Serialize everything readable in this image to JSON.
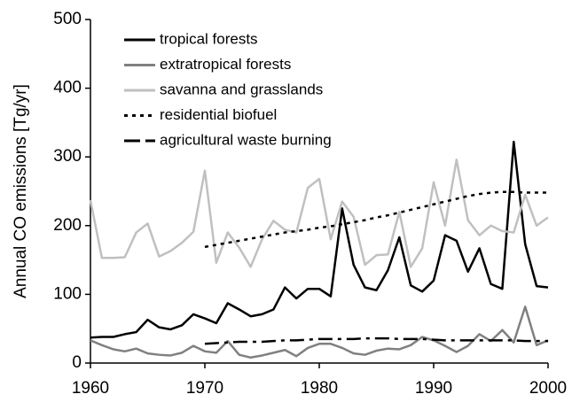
{
  "chart_data": {
    "type": "line",
    "ylabel": "Annual CO emissions [Tg/yr]",
    "x": [
      1960,
      1961,
      1962,
      1963,
      1964,
      1965,
      1966,
      1967,
      1968,
      1969,
      1970,
      1971,
      1972,
      1973,
      1974,
      1975,
      1976,
      1977,
      1978,
      1979,
      1980,
      1981,
      1982,
      1983,
      1984,
      1985,
      1986,
      1987,
      1988,
      1989,
      1990,
      1991,
      1992,
      1993,
      1994,
      1995,
      1996,
      1997,
      1998,
      1999,
      2000
    ],
    "series": [
      {
        "name": "tropical forests",
        "color": "#000000",
        "dash": "solid",
        "values": [
          37,
          38,
          38,
          42,
          45,
          63,
          52,
          49,
          55,
          71,
          65,
          58,
          87,
          78,
          68,
          71,
          78,
          110,
          94,
          108,
          108,
          97,
          225,
          143,
          110,
          106,
          135,
          183,
          113,
          104,
          120,
          186,
          178,
          133,
          167,
          115,
          108,
          322,
          173,
          112,
          110
        ]
      },
      {
        "name": "extratropical forests",
        "color": "#808080",
        "dash": "solid",
        "values": [
          33,
          26,
          20,
          17,
          21,
          14,
          12,
          11,
          15,
          25,
          17,
          15,
          32,
          12,
          8,
          11,
          15,
          19,
          10,
          22,
          28,
          28,
          22,
          14,
          12,
          18,
          21,
          20,
          26,
          38,
          33,
          25,
          16,
          25,
          42,
          32,
          48,
          30,
          82,
          26,
          33
        ]
      },
      {
        "name": "savanna and grasslands",
        "color": "#c0c0c0",
        "dash": "solid",
        "values": [
          237,
          153,
          153,
          154,
          190,
          203,
          155,
          163,
          175,
          191,
          280,
          146,
          190,
          168,
          140,
          180,
          207,
          194,
          190,
          255,
          268,
          180,
          235,
          213,
          143,
          157,
          158,
          220,
          140,
          167,
          263,
          200,
          296,
          208,
          186,
          200,
          192,
          190,
          245,
          200,
          212
        ]
      },
      {
        "name": "residential biofuel",
        "color": "#000000",
        "dash": "dotted",
        "values": [
          null,
          null,
          null,
          null,
          null,
          null,
          null,
          null,
          null,
          null,
          169,
          172,
          175,
          178,
          181,
          184,
          187,
          190,
          192,
          194,
          197,
          199,
          202,
          205,
          208,
          212,
          215,
          219,
          223,
          227,
          231,
          235,
          239,
          243,
          246,
          248,
          249,
          249,
          248,
          248,
          248
        ]
      },
      {
        "name": "agricultural waste burning",
        "color": "#000000",
        "dash": "dashed",
        "values": [
          null,
          null,
          null,
          null,
          null,
          null,
          null,
          null,
          null,
          null,
          28,
          29,
          30,
          31,
          31,
          31,
          32,
          33,
          33,
          34,
          35,
          35,
          35,
          35,
          36,
          36,
          36,
          35,
          35,
          35,
          34,
          33,
          33,
          33,
          33,
          33,
          33,
          33,
          32,
          32,
          32
        ]
      }
    ],
    "xlim": [
      1960,
      2000
    ],
    "xticks": [
      1960,
      1970,
      1980,
      1990,
      2000
    ],
    "ylim": [
      0,
      500
    ],
    "yticks": [
      0,
      100,
      200,
      300,
      400,
      500
    ],
    "legend": "upper left"
  }
}
